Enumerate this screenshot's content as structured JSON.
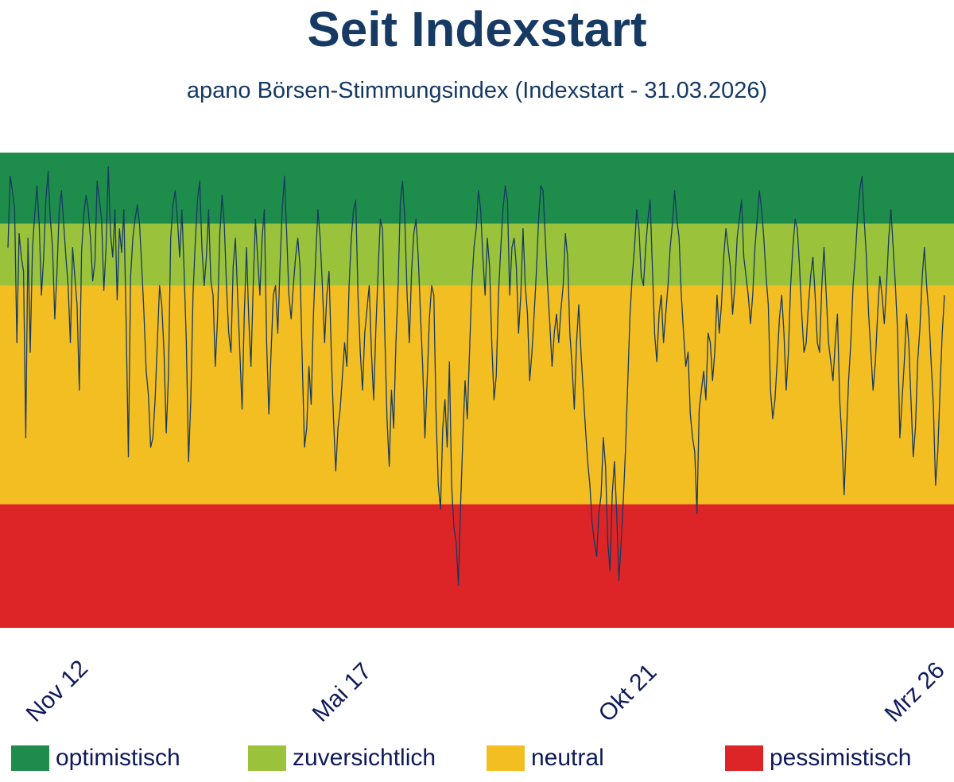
{
  "header": {
    "title": "Seit Indexstart",
    "subtitle": "apano Börsen-Stimmungsindex (Indexstart - 31.03.2026)"
  },
  "legend": [
    {
      "label": "optimistisch",
      "color": "#1e8c4a"
    },
    {
      "label": "zuversichtlich",
      "color": "#9ac33b"
    },
    {
      "label": "neutral",
      "color": "#f3be21"
    },
    {
      "label": "pessimistisch",
      "color": "#dd2426"
    }
  ],
  "chart_data": {
    "type": "line",
    "title": "Seit Indexstart",
    "subtitle": "apano Börsen-Stimmungsindex (Indexstart - 31.03.2026)",
    "xlabel": "",
    "ylabel": "",
    "x_tick_labels": [
      "Nov 12",
      "Mai 17",
      "Okt 21",
      "Mrz 26"
    ],
    "ylim": [
      0,
      100
    ],
    "grid": false,
    "legend_position": "bottom",
    "line_color": "#163a63",
    "bands": [
      {
        "label": "optimistisch",
        "from": 85,
        "to": 100,
        "color": "#1e8c4a"
      },
      {
        "label": "zuversichtlich",
        "from": 72,
        "to": 85,
        "color": "#9ac33b"
      },
      {
        "label": "neutral",
        "from": 26,
        "to": 72,
        "color": "#f3be21"
      },
      {
        "label": "pessimistisch",
        "from": 0,
        "to": 26,
        "color": "#dd2426"
      }
    ],
    "series": [
      {
        "values": [
          80,
          95,
          92,
          88,
          60,
          83,
          78,
          75,
          40,
          82,
          58,
          80,
          87,
          93,
          85,
          70,
          78,
          90,
          96,
          86,
          80,
          65,
          75,
          88,
          92,
          85,
          78,
          72,
          60,
          80,
          74,
          68,
          50,
          79,
          87,
          91,
          88,
          82,
          73,
          77,
          94,
          90,
          86,
          71,
          80,
          97,
          83,
          78,
          88,
          69,
          84,
          79,
          88,
          64,
          36,
          74,
          82,
          86,
          89,
          85,
          76,
          66,
          54,
          49,
          38,
          40,
          48,
          60,
          72,
          68,
          58,
          41,
          53,
          82,
          89,
          92,
          86,
          78,
          88,
          75,
          60,
          35,
          48,
          70,
          81,
          90,
          94,
          80,
          72,
          78,
          88,
          73,
          70,
          55,
          65,
          83,
          91,
          85,
          72,
          62,
          58,
          76,
          82,
          70,
          58,
          46,
          66,
          80,
          65,
          55,
          72,
          86,
          78,
          70,
          82,
          88,
          60,
          45,
          58,
          70,
          72,
          62,
          76,
          88,
          95,
          83,
          70,
          65,
          72,
          78,
          82,
          76,
          56,
          38,
          42,
          55,
          47,
          66,
          78,
          88,
          82,
          72,
          60,
          70,
          75,
          58,
          44,
          33,
          42,
          46,
          53,
          60,
          55,
          72,
          82,
          88,
          90,
          70,
          58,
          50,
          62,
          67,
          72,
          58,
          48,
          63,
          75,
          86,
          84,
          62,
          44,
          34,
          50,
          42,
          60,
          72,
          90,
          94,
          86,
          70,
          60,
          75,
          83,
          86,
          78,
          66,
          55,
          40,
          52,
          65,
          72,
          70,
          45,
          30,
          25,
          42,
          48,
          38,
          56,
          30,
          21,
          18,
          9,
          26,
          40,
          52,
          44,
          58,
          72,
          80,
          84,
          92,
          88,
          78,
          70,
          82,
          76,
          60,
          48,
          53,
          70,
          80,
          88,
          93,
          90,
          70,
          80,
          82,
          76,
          62,
          70,
          84,
          72,
          66,
          52,
          58,
          66,
          75,
          86,
          93,
          92,
          82,
          72,
          64,
          55,
          62,
          66,
          60,
          67,
          72,
          83,
          78,
          62,
          55,
          46,
          60,
          68,
          58,
          50,
          42,
          35,
          30,
          22,
          18,
          15,
          24,
          28,
          40,
          34,
          18,
          12,
          28,
          35,
          24,
          10,
          18,
          27,
          38,
          52,
          66,
          74,
          80,
          88,
          84,
          74,
          72,
          80,
          86,
          90,
          76,
          62,
          56,
          66,
          70,
          60,
          66,
          72,
          80,
          85,
          92,
          86,
          82,
          70,
          62,
          55,
          58,
          45,
          40,
          37,
          24,
          46,
          50,
          54,
          48,
          62,
          60,
          52,
          58,
          70,
          62,
          68,
          78,
          84,
          80,
          76,
          66,
          72,
          82,
          86,
          90,
          78,
          74,
          70,
          64,
          70,
          80,
          86,
          92,
          88,
          82,
          74,
          68,
          50,
          44,
          48,
          56,
          65,
          70,
          62,
          50,
          58,
          72,
          80,
          86,
          84,
          76,
          66,
          58,
          60,
          68,
          74,
          78,
          70,
          60,
          58,
          72,
          80,
          70,
          60,
          56,
          52,
          60,
          66,
          48,
          40,
          28,
          40,
          52,
          60,
          72,
          78,
          86,
          92,
          95,
          86,
          78,
          66,
          58,
          50,
          56,
          66,
          74,
          70,
          64,
          72,
          82,
          88,
          80,
          72,
          62,
          40,
          48,
          56,
          66,
          60,
          48,
          36,
          42,
          56,
          63,
          74,
          80,
          72,
          66,
          56,
          47,
          30,
          37,
          50,
          62,
          70
        ]
      }
    ]
  }
}
